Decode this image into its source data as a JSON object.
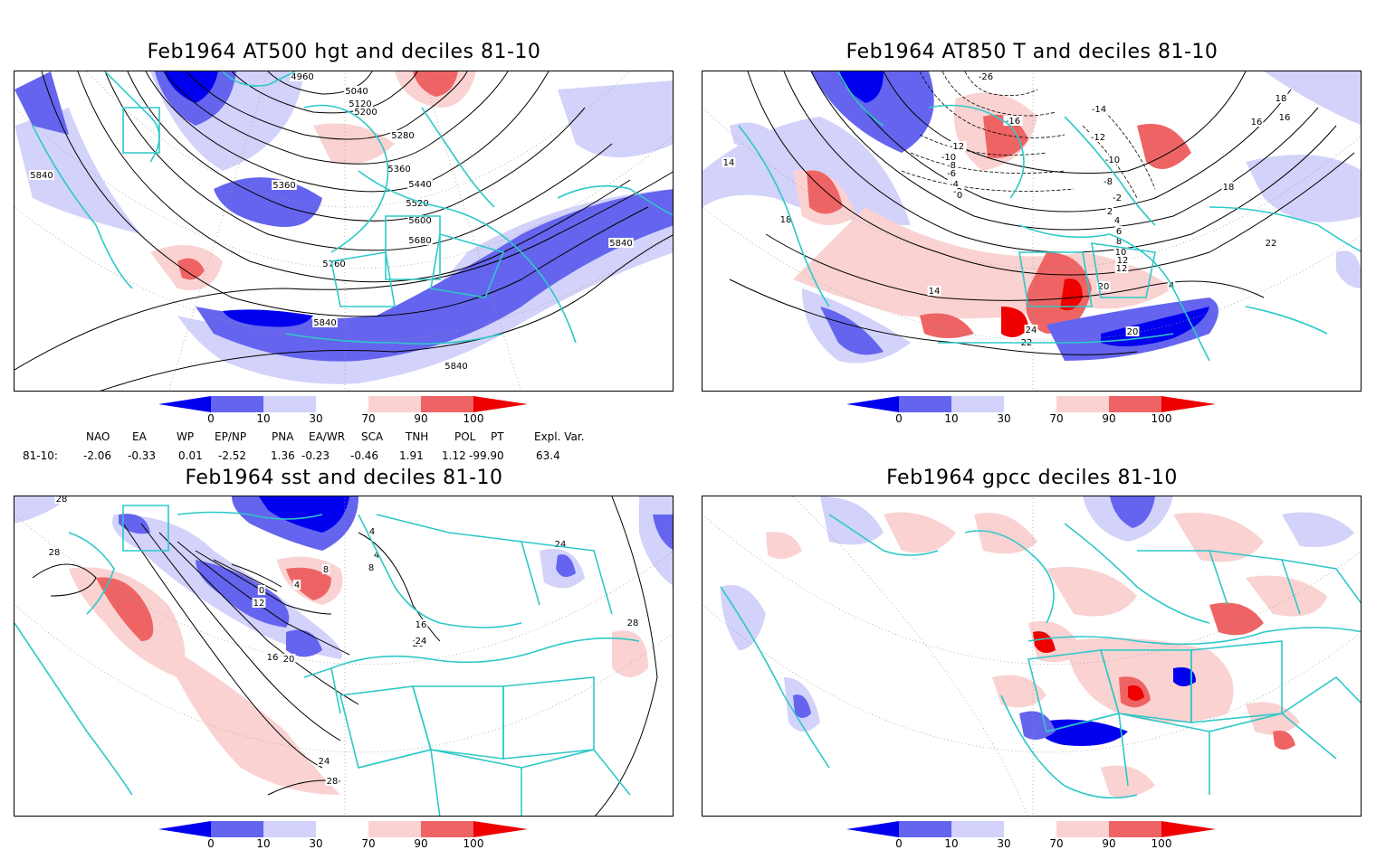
{
  "panels": {
    "p1": {
      "title": "Feb1964 AT500 hgt and deciles 81-10",
      "contour_labels": [
        "4960",
        "5040",
        "5120",
        "5200",
        "5280",
        "5360",
        "5360",
        "5440",
        "5520",
        "5600",
        "5680",
        "5760",
        "5840",
        "5840",
        "5840",
        "5840"
      ]
    },
    "p2": {
      "title": "Feb1964 AT850 T and deciles 81-10",
      "contour_labels": [
        "-26",
        "-16",
        "-14",
        "-12",
        "-10",
        "-8",
        "-2",
        "2",
        "4",
        "4",
        "6",
        "8",
        "10",
        "12",
        "12",
        "14",
        "14",
        "16",
        "16",
        "18",
        "18",
        "18",
        "20",
        "20",
        "22",
        "22",
        "24",
        "-12",
        "-10",
        "-8",
        "-6",
        "-4",
        "-2",
        "0"
      ]
    },
    "p3": {
      "title": "Feb1964 sst and deciles 81-10",
      "contour_labels": [
        "28",
        "28",
        "24",
        "24",
        "28",
        "20",
        "16",
        "12",
        "8",
        "4",
        "0",
        "4",
        "4",
        "8",
        "16",
        "20",
        "24",
        "28"
      ]
    },
    "p4": {
      "title": "Feb1964 gpcc deciles 81-10"
    }
  },
  "colorbar": {
    "labels": [
      "0",
      "10",
      "30",
      "70",
      "90",
      "100"
    ],
    "colors": [
      "#0000ee",
      "#6464ee",
      "#d2d2fa",
      "#ffffff",
      "#fad2d2",
      "#ee6464",
      "#ee0000"
    ]
  },
  "indices": {
    "headers": [
      "NAO",
      "EA",
      "WP",
      "EP/NP",
      "PNA",
      "EA/WR",
      "SCA",
      "TNH",
      "POL",
      "PT",
      "Expl. Var."
    ],
    "row_label": "81-10:",
    "values": [
      "-2.06",
      "-0.33",
      "0.01",
      "-2.52",
      "1.36",
      "-0.23",
      "-0.46",
      "1.91",
      "1.12",
      "-99.90",
      "63.4"
    ]
  },
  "style": {
    "coast_color": "#2ec8c8",
    "contour_color": "#000000"
  }
}
